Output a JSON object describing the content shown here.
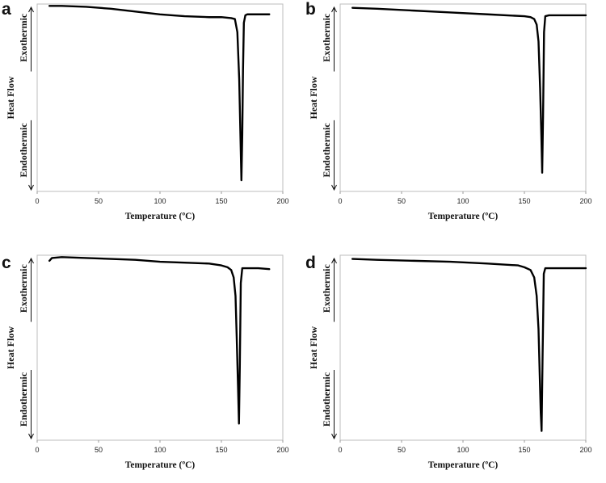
{
  "chart_data": [
    {
      "type": "line",
      "panel_label": "a",
      "xlabel": "Temperature (ºC)",
      "ylabel": "Heat Flow",
      "ylabel_upper": "Exothermic",
      "ylabel_lower": "Endothermic",
      "xlim": [
        0,
        200
      ],
      "xticks": [
        0,
        50,
        100,
        150,
        200
      ],
      "ylim": [
        0,
        1
      ],
      "yticks_shown": false,
      "grid": false,
      "series": [
        {
          "x": [
            10,
            20,
            40,
            60,
            80,
            100,
            120,
            140,
            150,
            158,
            161,
            163,
            164.5,
            165.5,
            166.3,
            167,
            167.6,
            168.3,
            169.5,
            171,
            175,
            180,
            189
          ],
          "y": [
            0.99,
            0.99,
            0.985,
            0.975,
            0.96,
            0.945,
            0.935,
            0.93,
            0.93,
            0.925,
            0.92,
            0.85,
            0.6,
            0.3,
            0.06,
            0.3,
            0.65,
            0.9,
            0.94,
            0.945,
            0.945,
            0.945,
            0.945
          ]
        }
      ]
    },
    {
      "type": "line",
      "panel_label": "b",
      "xlabel": "Temperature (ºC)",
      "ylabel": "Heat Flow",
      "ylabel_upper": "Exothermic",
      "ylabel_lower": "Endothermic",
      "xlim": [
        0,
        200
      ],
      "xticks": [
        0,
        50,
        100,
        150,
        200
      ],
      "ylim": [
        0,
        1
      ],
      "yticks_shown": false,
      "grid": false,
      "series": [
        {
          "x": [
            10,
            30,
            60,
            90,
            120,
            150,
            155,
            158,
            160,
            161.5,
            162.8,
            163.8,
            164.5,
            165.2,
            166,
            167,
            170,
            180,
            200
          ],
          "y": [
            0.98,
            0.975,
            0.965,
            0.955,
            0.945,
            0.935,
            0.93,
            0.92,
            0.89,
            0.8,
            0.55,
            0.3,
            0.1,
            0.4,
            0.85,
            0.935,
            0.94,
            0.94,
            0.94
          ]
        }
      ]
    },
    {
      "type": "line",
      "panel_label": "c",
      "xlabel": "Temperature (ºC)",
      "ylabel": "Heat Flow",
      "ylabel_upper": "Exothermic",
      "ylabel_lower": "Endothermic",
      "xlim": [
        0,
        200
      ],
      "xticks": [
        0,
        50,
        100,
        150,
        200
      ],
      "ylim": [
        0,
        1
      ],
      "yticks_shown": false,
      "grid": false,
      "series": [
        {
          "x": [
            10,
            12,
            20,
            40,
            60,
            80,
            100,
            120,
            140,
            150,
            155,
            158,
            160,
            161.5,
            162.5,
            163.5,
            164.3,
            165,
            165.8,
            167,
            170,
            180,
            189
          ],
          "y": [
            0.97,
            0.985,
            0.99,
            0.985,
            0.98,
            0.975,
            0.965,
            0.96,
            0.955,
            0.945,
            0.935,
            0.92,
            0.88,
            0.78,
            0.55,
            0.3,
            0.09,
            0.4,
            0.85,
            0.93,
            0.93,
            0.93,
            0.925
          ]
        }
      ]
    },
    {
      "type": "line",
      "panel_label": "d",
      "xlabel": "Temperature (ºC)",
      "ylabel": "Heat Flow",
      "ylabel_upper": "Exothermic",
      "ylabel_lower": "Endothermic",
      "xlim": [
        0,
        200
      ],
      "xticks": [
        0,
        50,
        100,
        150,
        200
      ],
      "ylim": [
        0,
        1
      ],
      "yticks_shown": false,
      "grid": false,
      "series": [
        {
          "x": [
            10,
            30,
            60,
            90,
            120,
            145,
            150,
            155,
            158,
            160,
            161.5,
            162.5,
            163.3,
            164,
            164.8,
            165.8,
            167,
            170,
            180,
            200
          ],
          "y": [
            0.98,
            0.975,
            0.97,
            0.965,
            0.955,
            0.945,
            0.935,
            0.92,
            0.88,
            0.78,
            0.6,
            0.35,
            0.15,
            0.05,
            0.45,
            0.9,
            0.93,
            0.93,
            0.93,
            0.93
          ]
        }
      ]
    }
  ]
}
